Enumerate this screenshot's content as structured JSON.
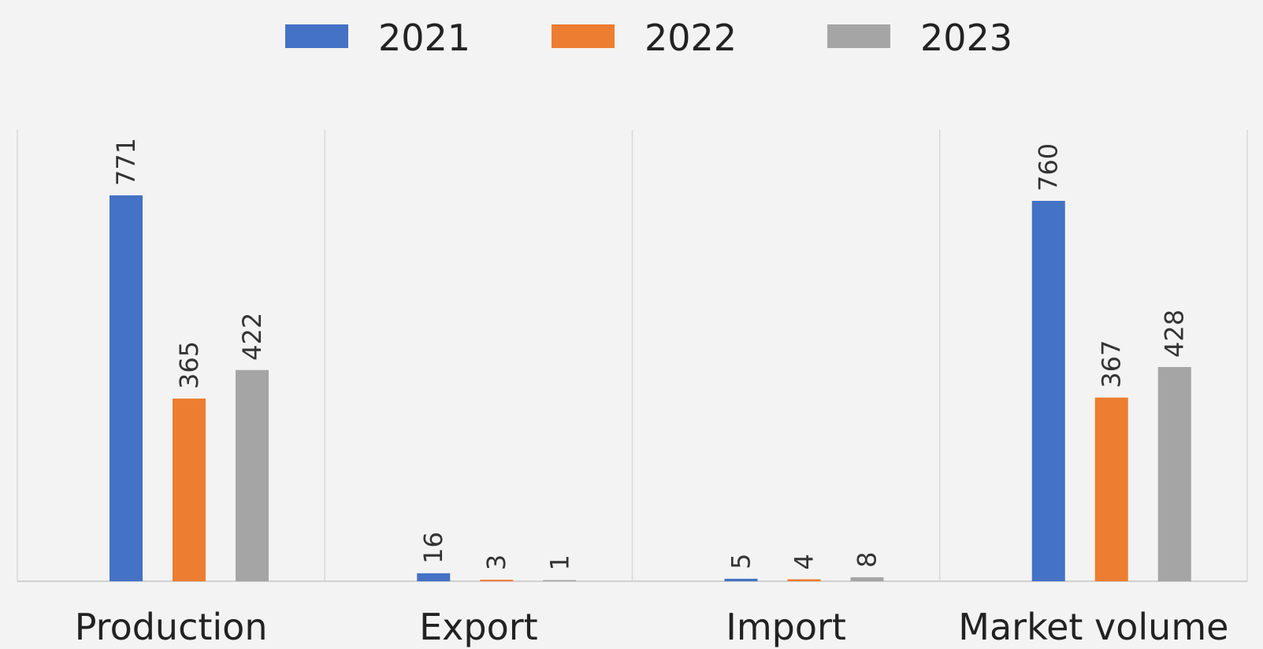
{
  "chart_data": {
    "type": "bar",
    "title": "",
    "xlabel": "",
    "ylabel": "",
    "ylim": [
      0,
      900
    ],
    "grid": false,
    "legend_position": "top-center",
    "categories": [
      "Production",
      "Export",
      "Import",
      "Market volume"
    ],
    "series": [
      {
        "name": "2021",
        "color": "#4472c4",
        "values": [
          771,
          16,
          5,
          760
        ]
      },
      {
        "name": "2022",
        "color": "#ed7d31",
        "values": [
          365,
          3,
          4,
          367
        ]
      },
      {
        "name": "2023",
        "color": "#a5a5a5",
        "values": [
          422,
          1,
          8,
          428
        ]
      }
    ]
  }
}
